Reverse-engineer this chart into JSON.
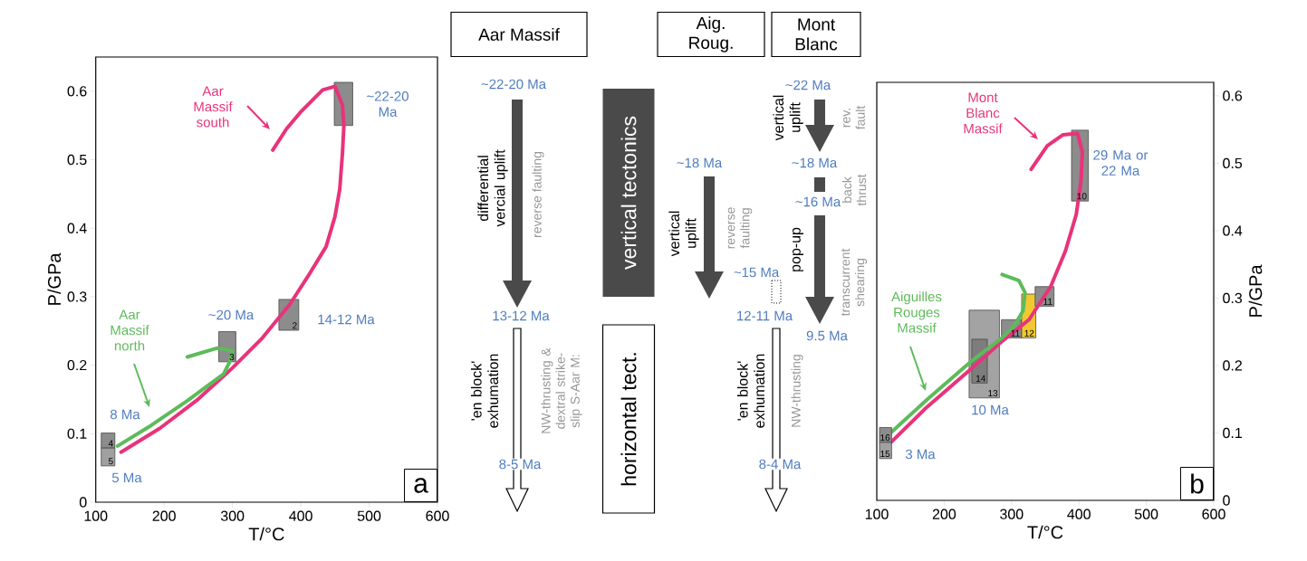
{
  "chart_data": [
    {
      "type": "line",
      "xlabel": "T/°C",
      "ylabel": "P/GPa",
      "xlim": [
        100,
        600
      ],
      "ylim": [
        0,
        0.65
      ],
      "xticks": [
        100,
        200,
        300,
        400,
        500,
        600
      ],
      "yticks": [
        0,
        0.1,
        0.2,
        0.3,
        0.4,
        0.5,
        0.6
      ],
      "series": [
        {
          "type": "area",
          "color": "#8c8c8c",
          "x": [
            449,
            476,
            476,
            449
          ],
          "values": [
            0.55,
            0.55,
            0.613,
            0.613
          ]
        },
        {
          "type": "area",
          "name": "3",
          "color": "#8c8c8c",
          "x": [
            280,
            305,
            305,
            280
          ],
          "values": [
            0.205,
            0.205,
            0.249,
            0.249
          ]
        },
        {
          "type": "area",
          "name": "2",
          "color": "#8c8c8c",
          "x": [
            368,
            397,
            397,
            368
          ],
          "values": [
            0.251,
            0.251,
            0.296,
            0.296
          ]
        },
        {
          "name": "Aar Massif south",
          "color": "#e8337a",
          "x": [
            137,
            194,
            247,
            300,
            344,
            384,
            410,
            437,
            450,
            457,
            461,
            463,
            461,
            450,
            432,
            401,
            379,
            359
          ],
          "values": [
            0.073,
            0.108,
            0.148,
            0.196,
            0.24,
            0.289,
            0.329,
            0.373,
            0.417,
            0.457,
            0.51,
            0.549,
            0.58,
            0.607,
            0.602,
            0.571,
            0.545,
            0.514
          ]
        },
        {
          "name": "Aar Massif north",
          "color": "#5dbb5a",
          "x": [
            132,
            181,
            234,
            287,
            296,
            300,
            278,
            234
          ],
          "values": [
            0.082,
            0.112,
            0.148,
            0.187,
            0.205,
            0.221,
            0.225,
            0.212
          ]
        },
        {
          "type": "area",
          "name": "4",
          "color": "#8c8c8c",
          "x": [
            108,
            128,
            128,
            108
          ],
          "values": [
            0.079,
            0.079,
            0.101,
            0.101
          ]
        },
        {
          "type": "area",
          "name": "5",
          "color": "#a0a0a0",
          "x": [
            108,
            128,
            128,
            108
          ],
          "values": [
            0.053,
            0.053,
            0.079,
            0.079
          ]
        }
      ],
      "annotations": [
        "~22-20 Ma",
        "~20 Ma",
        "14-12 Ma",
        "8 Ma",
        "5 Ma",
        "a"
      ]
    },
    {
      "type": "other",
      "annotations": [
        "Aar Massif",
        "Aig. Roug.",
        "Mont Blanc",
        "vertical tectonics",
        "horizontal tect.",
        "~22-20 Ma",
        "differential vercial uplift",
        "reverse faulting",
        "13-12 Ma",
        "'en block' exhumation",
        "NW-thrusting & dextral strike-slip S-Aar M:",
        "8-5 Ma",
        "~18 Ma",
        "vertical uplift",
        "reverse faulting",
        "~15 Ma",
        "12-11 Ma",
        "'en block' exhumation",
        "NW-thrusting",
        "8-4 Ma",
        "~22 Ma",
        "vertical uplift",
        "rev. fault",
        "~18 Ma",
        "~16 Ma",
        "back thrust",
        "pop-up",
        "transcurrent shearing",
        "9.5 Ma"
      ]
    },
    {
      "type": "line",
      "xlabel": "T/°C",
      "ylabel": "P/GPa",
      "xlim": [
        100,
        600
      ],
      "ylim": [
        0,
        0.62
      ],
      "xticks": [
        100,
        200,
        300,
        400,
        500,
        600
      ],
      "yticks": [
        0,
        0.1,
        0.2,
        0.3,
        0.4,
        0.5,
        0.6
      ],
      "series": [
        {
          "type": "area",
          "name": "13",
          "color": "#a3a3a3",
          "x": [
            237,
            282,
            282,
            237
          ],
          "values": [
            0.152,
            0.152,
            0.282,
            0.282
          ]
        },
        {
          "type": "area",
          "name": "14",
          "color": "#7d7d7d",
          "x": [
            241,
            264,
            264,
            241
          ],
          "values": [
            0.174,
            0.174,
            0.239,
            0.239
          ]
        },
        {
          "type": "area",
          "name": "11",
          "color": "#8c8c8c",
          "x": [
            285,
            315,
            315,
            285
          ],
          "values": [
            0.241,
            0.241,
            0.268,
            0.268
          ]
        },
        {
          "type": "area",
          "name": "12",
          "color": "#f2c832",
          "x": [
            315,
            336,
            336,
            315
          ],
          "values": [
            0.241,
            0.241,
            0.306,
            0.306
          ]
        },
        {
          "type": "area",
          "name": "11",
          "color": "#8c8c8c",
          "x": [
            335,
            363,
            363,
            335
          ],
          "values": [
            0.288,
            0.288,
            0.317,
            0.317
          ]
        },
        {
          "type": "area",
          "name": "10",
          "color": "#8c8c8c",
          "x": [
            389,
            414,
            414,
            389
          ],
          "values": [
            0.444,
            0.444,
            0.549,
            0.549
          ]
        },
        {
          "name": "Mont Blanc Massif",
          "color": "#e8337a",
          "x": [
            120,
            174,
            241,
            286,
            326,
            358,
            380,
            396,
            403,
            405,
            398,
            376,
            353,
            329
          ],
          "values": [
            0.085,
            0.138,
            0.196,
            0.236,
            0.268,
            0.317,
            0.37,
            0.424,
            0.473,
            0.517,
            0.544,
            0.542,
            0.526,
            0.491
          ]
        },
        {
          "name": "Aiguilles Rouges Massif",
          "color": "#5dbb5a",
          "x": [
            116,
            174,
            241,
            286,
            304,
            317,
            320,
            311,
            286
          ],
          "values": [
            0.096,
            0.149,
            0.207,
            0.241,
            0.259,
            0.281,
            0.308,
            0.326,
            0.335
          ]
        },
        {
          "type": "area",
          "name": "16",
          "color": "#8c8c8c",
          "x": [
            104,
            122,
            122,
            104
          ],
          "values": [
            0.086,
            0.086,
            0.108,
            0.108
          ]
        },
        {
          "type": "area",
          "name": "15",
          "color": "#a0a0a0",
          "x": [
            104,
            122,
            122,
            104
          ],
          "values": [
            0.062,
            0.062,
            0.086,
            0.086
          ]
        }
      ],
      "annotations": [
        "29 Ma or 22 Ma",
        "10 Ma",
        "3 Ma",
        "b"
      ]
    }
  ]
}
